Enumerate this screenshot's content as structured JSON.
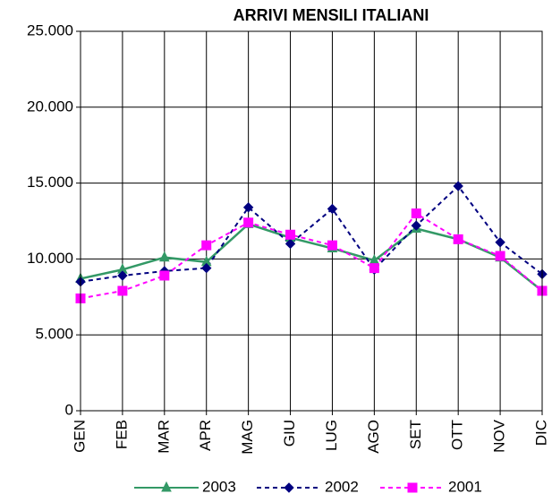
{
  "chart_data": {
    "type": "line",
    "title": "ARRIVI MENSILI ITALIANI",
    "categories": [
      "GEN",
      "FEB",
      "MAR",
      "APR",
      "MAG",
      "GIU",
      "LUG",
      "AGO",
      "SET",
      "OTT",
      "NOV",
      "DIC"
    ],
    "series": [
      {
        "name": "2003",
        "color": "#339966",
        "marker": "triangle",
        "dash": "solid",
        "values": [
          8700,
          9300,
          10100,
          9800,
          12300,
          11400,
          10700,
          9900,
          12000,
          11300,
          10100,
          7900
        ]
      },
      {
        "name": "2002",
        "color": "#000080",
        "marker": "diamond",
        "dash": "dashed",
        "values": [
          8500,
          8900,
          9200,
          9400,
          13400,
          11000,
          13300,
          9300,
          12200,
          14800,
          11100,
          9000
        ]
      },
      {
        "name": "2001",
        "color": "#ff00ff",
        "marker": "square",
        "dash": "dashed",
        "values": [
          7400,
          7900,
          8900,
          10900,
          12400,
          11600,
          10900,
          9400,
          13000,
          11300,
          10200,
          7900
        ]
      }
    ],
    "ylim": [
      0,
      25000
    ],
    "yticks": [
      0,
      {
        "value": 5000,
        "label": "5.000"
      },
      {
        "value": 10000,
        "label": "10.000"
      },
      {
        "value": 15000,
        "label": "15.000"
      },
      {
        "value": 20000,
        "label": "20.000"
      },
      {
        "value": 25000,
        "label": "25.000"
      }
    ],
    "grid": true,
    "legend": "bottom"
  }
}
